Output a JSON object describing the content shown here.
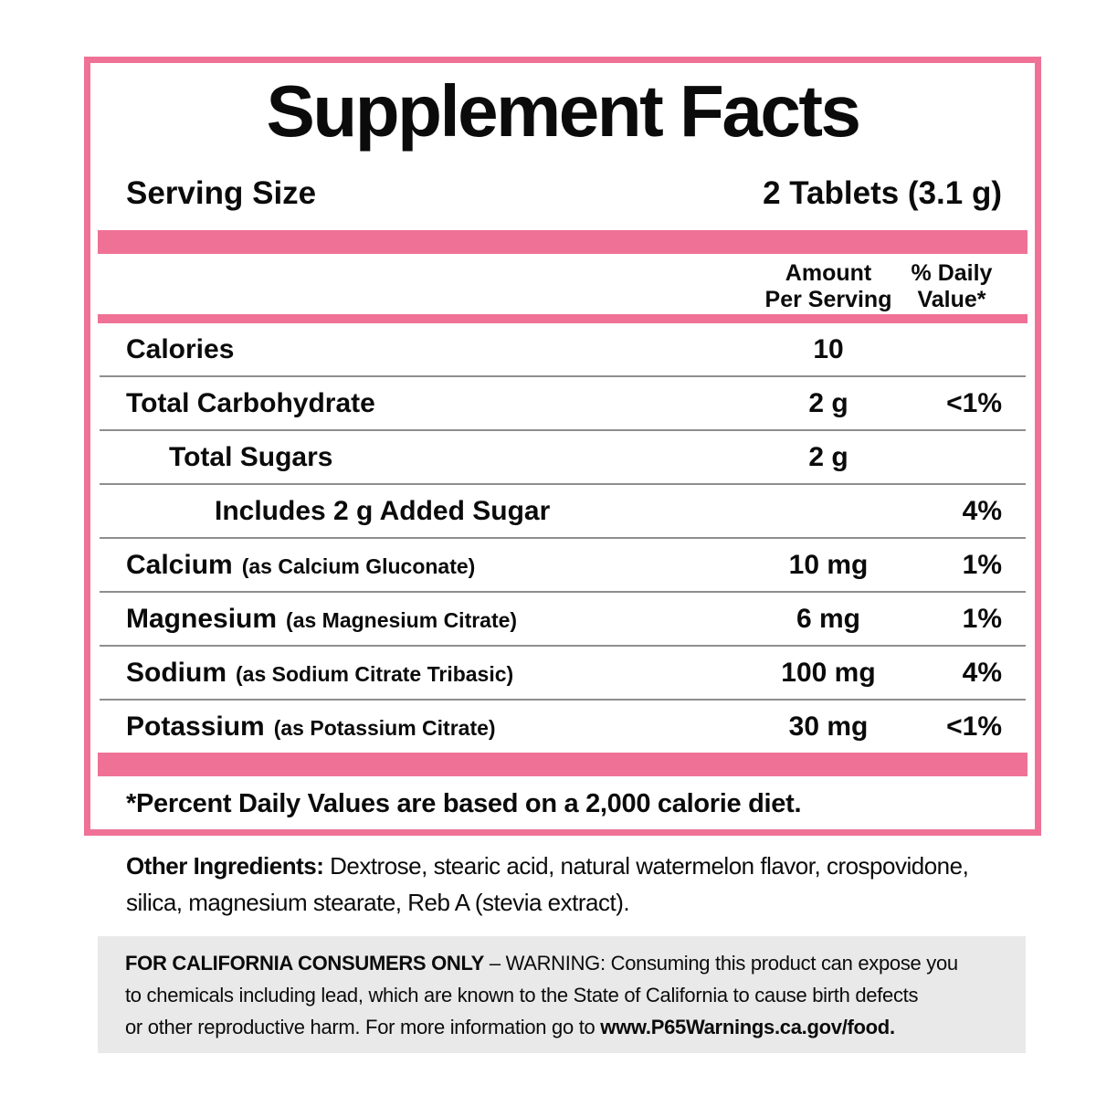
{
  "colors": {
    "pink": "#EF7296",
    "divider": "#8e8e8e",
    "graybox": "#e9e9e9"
  },
  "panel": {
    "title": "Supplement Facts",
    "serving_size_label": "Serving Size",
    "serving_size_value": "2 Tablets (3.1 g)",
    "headers": {
      "amount_line1": "Amount",
      "amount_line2": "Per Serving",
      "dv_line1": "% Daily",
      "dv_line2": "Value*"
    },
    "rows": [
      {
        "name": "Calories",
        "note": "",
        "amount": "10",
        "dv": ""
      },
      {
        "name": "Total Carbohydrate",
        "note": "",
        "amount": "2 g",
        "dv": "<1%"
      },
      {
        "name": "Total Sugars",
        "note": "",
        "amount": "2 g",
        "dv": ""
      },
      {
        "name": "Includes 2 g Added Sugar",
        "note": "",
        "amount": "",
        "dv": "4%"
      },
      {
        "name": "Calcium",
        "note": "(as Calcium Gluconate)",
        "amount": "10 mg",
        "dv": "1%"
      },
      {
        "name": "Magnesium",
        "note": "(as Magnesium Citrate)",
        "amount": "6 mg",
        "dv": "1%"
      },
      {
        "name": "Sodium",
        "note": "(as Sodium Citrate Tribasic)",
        "amount": "100 mg",
        "dv": "4%"
      },
      {
        "name": "Potassium",
        "note": "(as Potassium Citrate)",
        "amount": "30 mg",
        "dv": "<1%"
      }
    ],
    "footnote": "*Percent Daily Values are based on a 2,000 calorie diet."
  },
  "other_ingredients": {
    "label": "Other Ingredients:",
    "line1_rest": " Dextrose, stearic acid, natural watermelon flavor, crospovidone,",
    "line2": "silica, magnesium stearate, Reb A (stevia extract)."
  },
  "california_warning": {
    "lead": "FOR CALIFORNIA CONSUMERS ONLY",
    "line1_rest": " – WARNING: Consuming this product can expose you",
    "line2": "to chemicals including lead, which are known to the State of California to cause birth defects",
    "line3_start": "or other reproductive harm. For more information go to ",
    "link": "www.P65Warnings.ca.gov/food."
  }
}
